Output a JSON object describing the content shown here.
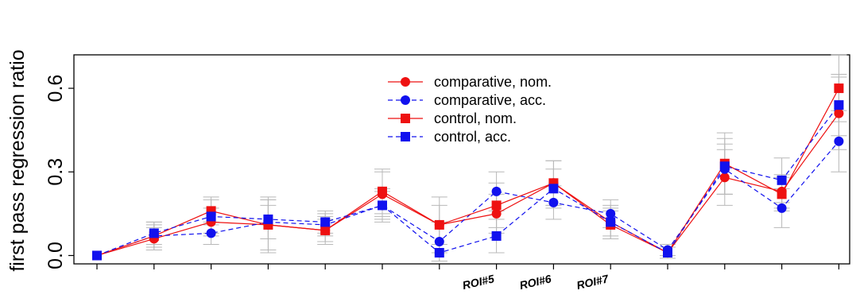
{
  "chart_data": {
    "type": "line",
    "title": "",
    "xlabel": "",
    "ylabel": "first pass regression ratio",
    "ylim": [
      -0.03,
      0.72
    ],
    "yticks": [
      0.0,
      0.3,
      0.6
    ],
    "ytick_labels": [
      "0.0",
      "0.3",
      "0.6"
    ],
    "x": [
      1,
      2,
      3,
      4,
      5,
      6,
      7,
      8,
      9,
      10,
      11,
      12,
      13,
      14
    ],
    "xtick_labels": [
      "",
      "",
      "",
      "",
      "",
      "",
      "",
      "ROI#5",
      "ROI#6",
      "ROI#7",
      "",
      "",
      "",
      ""
    ],
    "legend_position": "top-center",
    "grid": false,
    "series": [
      {
        "name": "comparative, nom.",
        "color": "#ee1111",
        "line_style": "solid",
        "marker": "circle",
        "values": [
          0.0,
          0.06,
          0.12,
          0.11,
          0.09,
          0.22,
          0.11,
          0.15,
          0.26,
          0.12,
          0.01,
          0.28,
          0.23,
          0.51
        ],
        "errors": [
          0.0,
          0.04,
          0.05,
          0.09,
          0.05,
          0.08,
          0.1,
          0.07,
          0.08,
          0.06,
          0.02,
          0.1,
          0.06,
          0.13
        ]
      },
      {
        "name": "comparative, acc.",
        "color": "#1111ee",
        "line_style": "dashed",
        "marker": "circle",
        "values": [
          0.0,
          0.07,
          0.08,
          0.12,
          0.11,
          0.18,
          0.05,
          0.23,
          0.19,
          0.15,
          0.02,
          0.31,
          0.17,
          0.41
        ],
        "errors": [
          0.0,
          0.04,
          0.04,
          0.06,
          0.04,
          0.05,
          0.07,
          0.07,
          0.06,
          0.05,
          0.02,
          0.09,
          0.07,
          0.11
        ]
      },
      {
        "name": "control, nom.",
        "color": "#ee1111",
        "line_style": "solid",
        "marker": "square",
        "values": [
          0.0,
          0.07,
          0.16,
          0.11,
          0.09,
          0.23,
          0.11,
          0.18,
          0.26,
          0.11,
          0.01,
          0.33,
          0.22,
          0.6
        ],
        "errors": [
          0.0,
          0.05,
          0.05,
          0.1,
          0.04,
          0.08,
          0.07,
          0.08,
          0.08,
          0.05,
          0.02,
          0.11,
          0.06,
          0.12
        ]
      },
      {
        "name": "control, acc.",
        "color": "#1111ee",
        "line_style": "dashed",
        "marker": "square",
        "values": [
          0.0,
          0.08,
          0.14,
          0.13,
          0.12,
          0.18,
          0.01,
          0.07,
          0.24,
          0.12,
          0.01,
          0.32,
          0.27,
          0.54
        ],
        "errors": [
          0.0,
          0.04,
          0.06,
          0.07,
          0.04,
          0.06,
          0.03,
          0.06,
          0.07,
          0.05,
          0.02,
          0.1,
          0.08,
          0.11
        ]
      }
    ]
  }
}
